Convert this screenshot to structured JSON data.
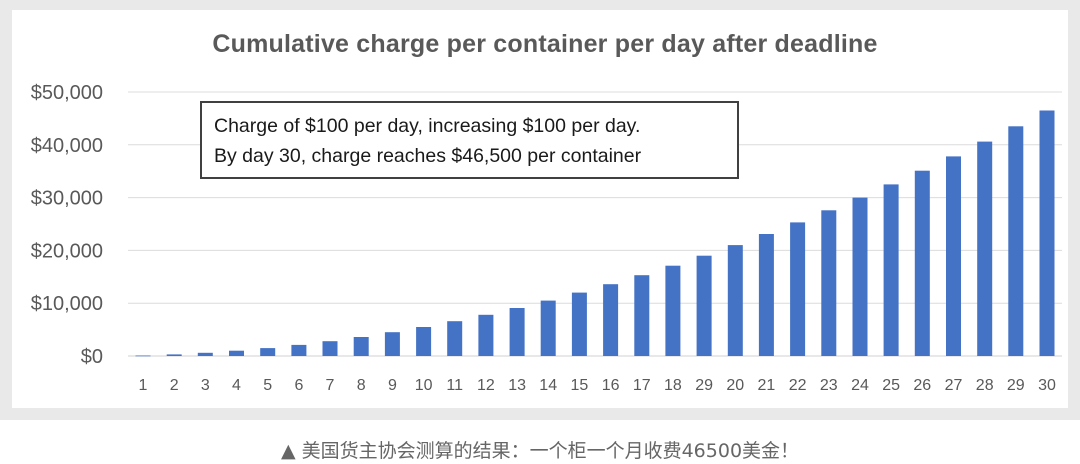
{
  "chart_data": {
    "type": "bar",
    "title": "Cumulative charge per container per day after deadline",
    "categories": [
      "1",
      "2",
      "3",
      "4",
      "5",
      "6",
      "7",
      "8",
      "9",
      "10",
      "11",
      "12",
      "13",
      "14",
      "15",
      "16",
      "17",
      "18",
      "29",
      "20",
      "21",
      "22",
      "23",
      "24",
      "25",
      "26",
      "27",
      "28",
      "29",
      "30"
    ],
    "series": [
      {
        "values": [
          100,
          300,
          600,
          1000,
          1500,
          2100,
          2800,
          3600,
          4500,
          5500,
          6600,
          7800,
          9100,
          10500,
          12000,
          13600,
          15300,
          17100,
          19000,
          21000,
          23100,
          25300,
          27600,
          30000,
          32500,
          35100,
          37800,
          40600,
          43500,
          46500
        ],
        "color": "#4472c4"
      }
    ],
    "y_ticks": [
      "$0",
      "$10,000",
      "$20,000",
      "$30,000",
      "$40,000",
      "$50,000"
    ],
    "ylim": [
      0,
      50000
    ],
    "grid": true,
    "annotation": {
      "line1": "Charge of $100 per day, increasing $100 per day.",
      "line2": "By day 30, charge reaches $46,500 per container"
    }
  },
  "caption": "▲ 美国货主协会测算的结果：一个柜一个月收费46500美金！"
}
